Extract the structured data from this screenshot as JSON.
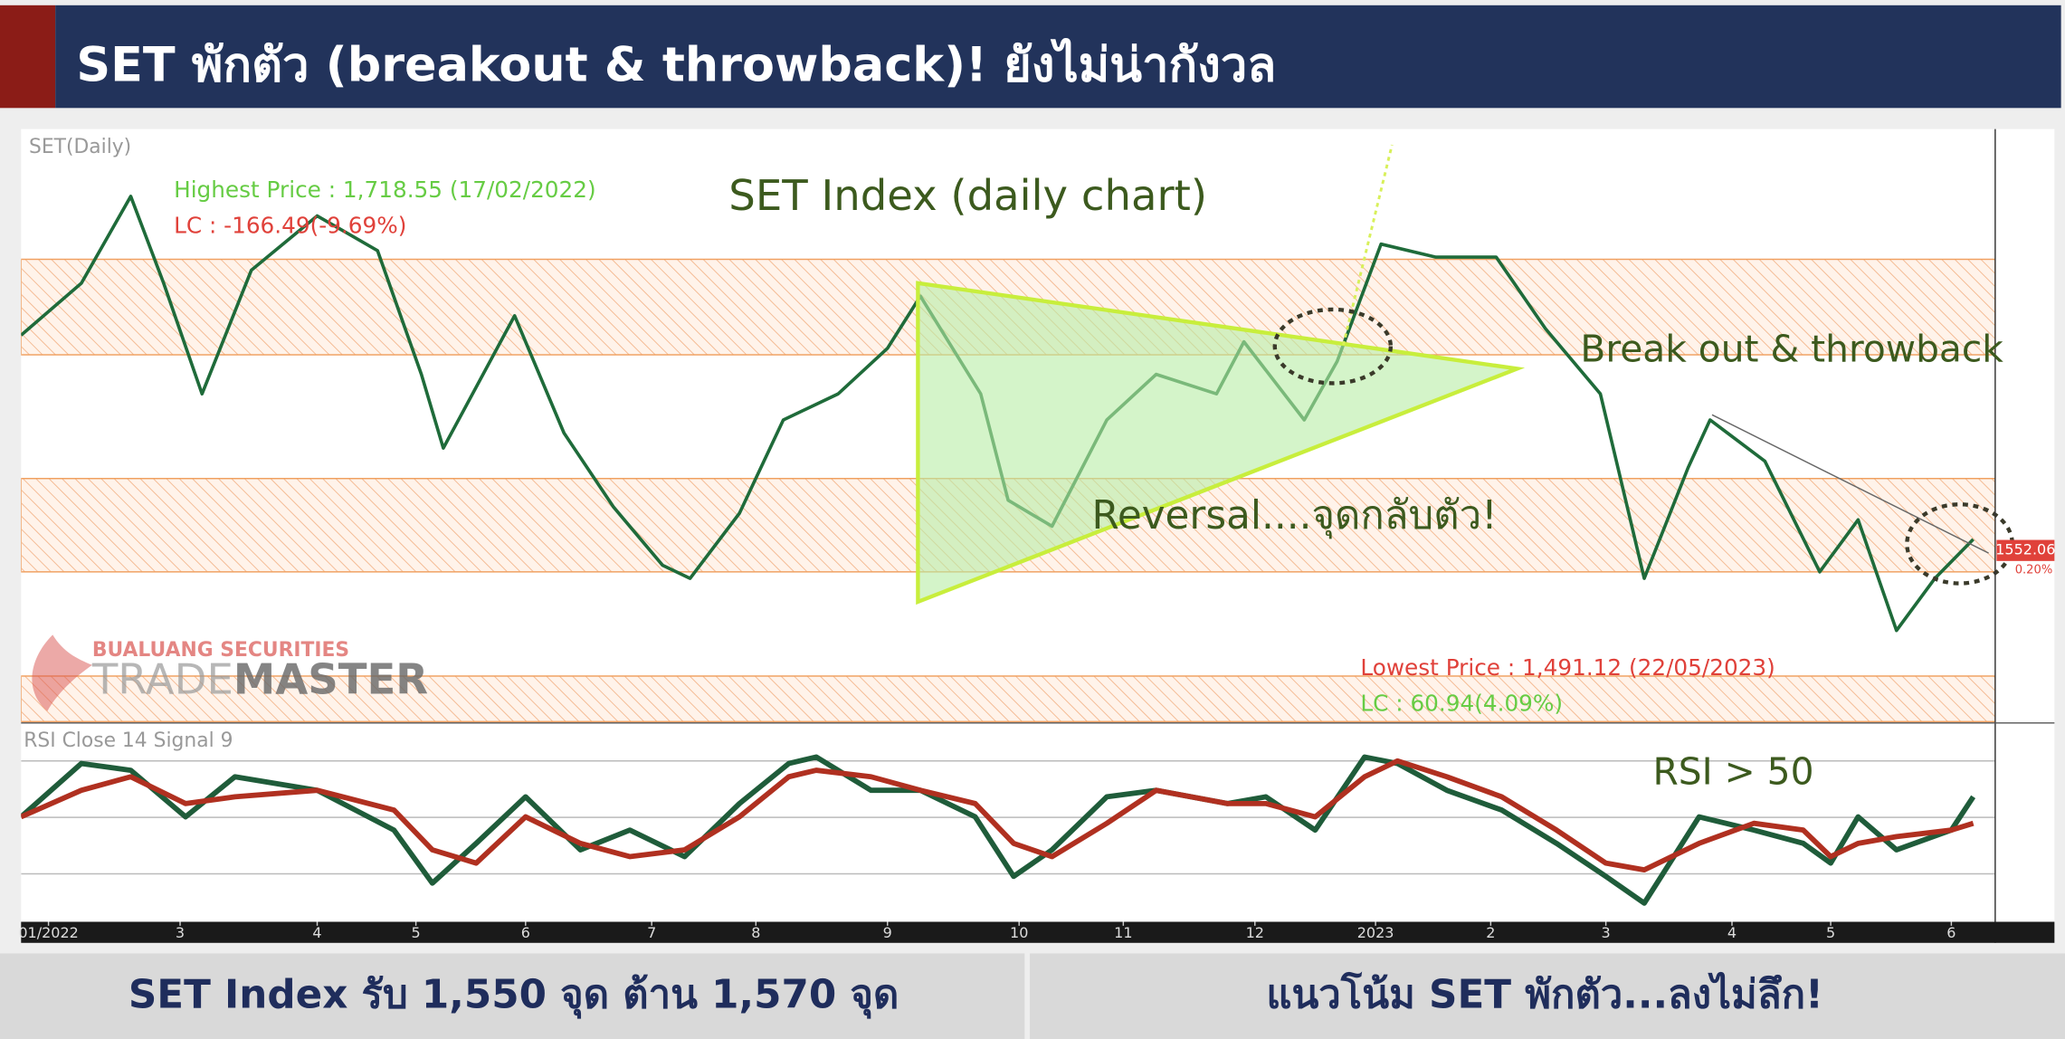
{
  "header": {
    "title": "SET พักตัว (breakout & throwback)! ยังไม่น่ากังวล"
  },
  "footer": {
    "left": "SET Index รับ 1,550 จุด ต้าน 1,570 จุด",
    "right": "แนวโน้ม SET พักตัว...ลงไม่ลึก!"
  },
  "watermark": {
    "company": "BUALUANG SECURITIES",
    "brand_light": "TRADE",
    "brand_bold": "MASTER"
  },
  "chart_data": [
    {
      "type": "line",
      "panel_label": "SET(Daily)",
      "title": "SET Index (daily chart)",
      "xlim": [
        0,
        360
      ],
      "ylim": [
        1472,
        1745
      ],
      "x": [
        0,
        11,
        20,
        26,
        33,
        42,
        54,
        65,
        73,
        77,
        90,
        99,
        108,
        117,
        122,
        131,
        139,
        149,
        158,
        164,
        175,
        180,
        188,
        198,
        207,
        218,
        223,
        234,
        240,
        248,
        258,
        269,
        278,
        288,
        296,
        304,
        308,
        318,
        328,
        335,
        342,
        349,
        356
      ],
      "series": [
        {
          "name": "SET",
          "color": "#1f6b3a",
          "values": [
            1650,
            1674,
            1714,
            1674,
            1623,
            1680,
            1705,
            1689,
            1632,
            1598,
            1659,
            1605,
            1571,
            1544,
            1538,
            1568,
            1611,
            1623,
            1644,
            1668,
            1623,
            1574,
            1562,
            1611,
            1632,
            1623,
            1647,
            1611,
            1638,
            1692,
            1686,
            1686,
            1653,
            1623,
            1538,
            1589,
            1611,
            1592,
            1541,
            1565,
            1514,
            1538,
            1556
          ]
        }
      ],
      "zones": [
        {
          "from": 1641,
          "to": 1685
        },
        {
          "from": 1541,
          "to": 1584
        },
        {
          "from": 1472,
          "to": 1493
        }
      ],
      "annotations": [
        "Highest Price : 1,718.55 (17/02/2022)",
        "LC : -166.49(-9.69%)",
        "Break out & throwback",
        "Reversal....จุดกลับตัว!",
        "Lowest Price : 1,491.12 (22/05/2023)",
        "LC : 60.94(4.09%)",
        "1552.06",
        "0.20%"
      ]
    },
    {
      "type": "line",
      "panel_label": "RSI Close 14 Signal 9",
      "annotation": "RSI > 50",
      "xlim": [
        0,
        360
      ],
      "ylim": [
        13,
        83
      ],
      "yticks": [
        30,
        50,
        70
      ],
      "grid": true,
      "xticks": [
        {
          "value": 5,
          "label": "01/2022"
        },
        {
          "value": 29,
          "label": "3"
        },
        {
          "value": 54,
          "label": "4"
        },
        {
          "value": 72,
          "label": "5"
        },
        {
          "value": 92,
          "label": "6"
        },
        {
          "value": 115,
          "label": "7"
        },
        {
          "value": 134,
          "label": "8"
        },
        {
          "value": 158,
          "label": "9"
        },
        {
          "value": 182,
          "label": "10"
        },
        {
          "value": 201,
          "label": "11"
        },
        {
          "value": 225,
          "label": "12"
        },
        {
          "value": 247,
          "label": "2023"
        },
        {
          "value": 268,
          "label": "2"
        },
        {
          "value": 289,
          "label": "3"
        },
        {
          "value": 312,
          "label": "4"
        },
        {
          "value": 330,
          "label": "5"
        },
        {
          "value": 352,
          "label": "6"
        }
      ],
      "x": [
        0,
        11,
        20,
        30,
        39,
        54,
        68,
        75,
        83,
        92,
        102,
        111,
        121,
        131,
        140,
        145,
        155,
        164,
        174,
        181,
        188,
        198,
        207,
        220,
        227,
        236,
        245,
        251,
        260,
        270,
        280,
        289,
        296,
        306,
        316,
        325,
        330,
        335,
        342,
        352,
        356
      ],
      "series": [
        {
          "name": "RSI",
          "color": "#1f5c3a",
          "values": [
            50.2,
            69.1,
            66.7,
            50.2,
            64.4,
            59.6,
            45.5,
            26.7,
            40.8,
            57.3,
            38.5,
            45.5,
            36.1,
            54.9,
            69.1,
            71.4,
            59.6,
            59.6,
            50.2,
            29.1,
            38.5,
            57.3,
            59.6,
            54.9,
            57.3,
            45.5,
            71.4,
            69.1,
            59.6,
            52.6,
            40.8,
            29.1,
            19.6,
            50.2,
            45.5,
            40.8,
            33.8,
            50.2,
            38.5,
            45.5,
            57.3
          ]
        },
        {
          "name": "Signal",
          "color": "#b03020",
          "values": [
            50.2,
            59.6,
            64.4,
            54.9,
            57.3,
            59.6,
            52.6,
            38.5,
            33.8,
            50.2,
            40.8,
            36.1,
            38.5,
            50.2,
            64.4,
            66.7,
            64.4,
            59.6,
            54.9,
            40.8,
            36.1,
            47.9,
            59.6,
            54.9,
            54.9,
            50.2,
            64.4,
            70,
            64.4,
            57.3,
            45.5,
            33.8,
            31.4,
            40.8,
            47.9,
            45.5,
            36.1,
            40.8,
            43.2,
            45.5,
            47.9
          ]
        }
      ]
    }
  ]
}
